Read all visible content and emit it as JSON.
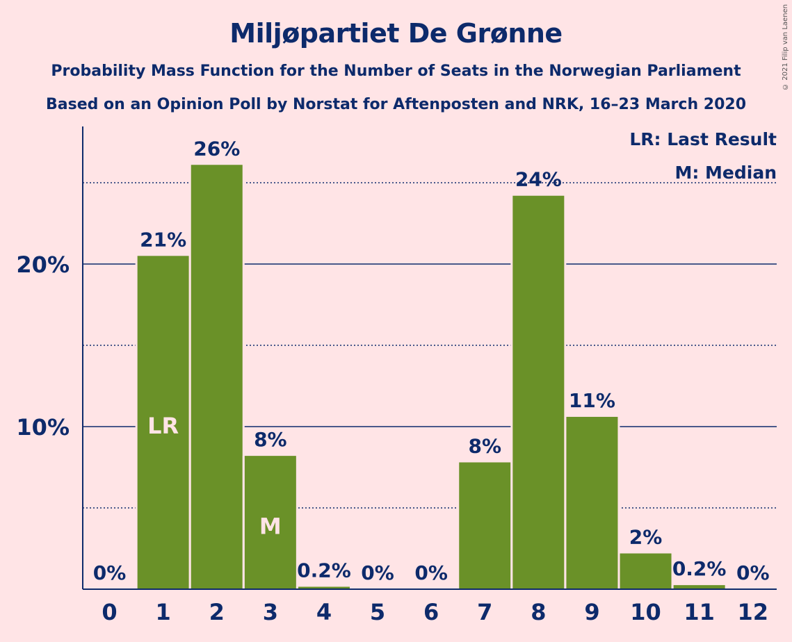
{
  "title": "Miljøpartiet De Grønne",
  "subtitle1": "Probability Mass Function for the Number of Seats in the Norwegian Parliament",
  "subtitle2": "Based on an Opinion Poll by Norstat for Aftenposten and NRK, 16–23 March 2020",
  "copyright": "© 2021 Filip van Laenen",
  "colors": {
    "background": "#ffe4e6",
    "bar": "#6a9128",
    "text": "#0d2a6b"
  },
  "legend": {
    "lr": "LR: Last Result",
    "m": "M: Median"
  },
  "chart_data": {
    "type": "bar",
    "categories": [
      "0",
      "1",
      "2",
      "3",
      "4",
      "5",
      "6",
      "7",
      "8",
      "9",
      "10",
      "11",
      "12"
    ],
    "values": [
      0,
      20.5,
      26.1,
      8.2,
      0.15,
      0,
      0,
      7.8,
      24.2,
      10.6,
      2.2,
      0.25,
      0
    ],
    "data_labels": [
      "0%",
      "21%",
      "26%",
      "8%",
      "0.2%",
      "0%",
      "0%",
      "8%",
      "24%",
      "11%",
      "2%",
      "0.2%",
      "0%"
    ],
    "bar_markers": {
      "1": "LR",
      "3": "M"
    },
    "yticks": [
      10,
      20
    ],
    "ytick_labels": [
      "10%",
      "20%"
    ],
    "minor_gridlines": [
      5,
      15,
      25
    ],
    "ylim": [
      0,
      28.4
    ],
    "legend_position": "top-right"
  }
}
